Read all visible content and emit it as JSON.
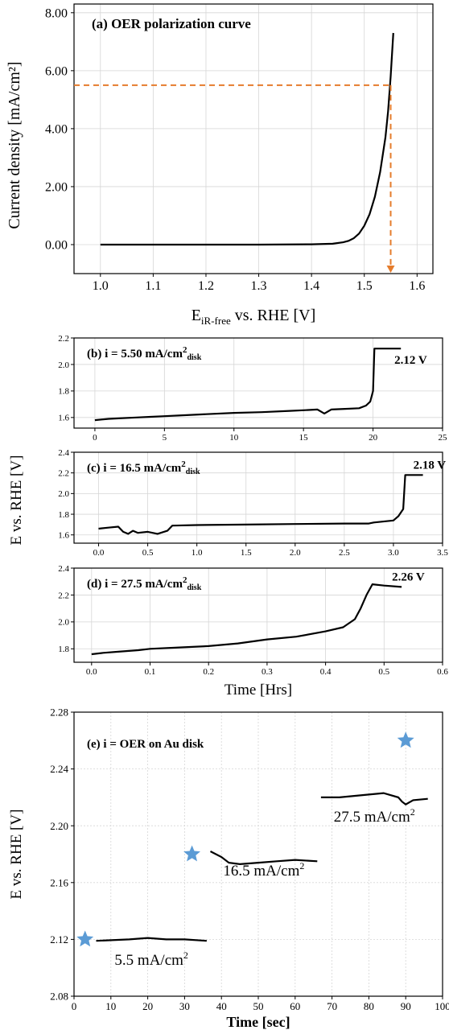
{
  "chart_data": [
    {
      "id": "a",
      "type": "line",
      "title": "(a) OER polarization curve",
      "xlabel_main": "E",
      "xlabel_sub": "iR-free",
      "xlabel_rest": " vs. RHE [V]",
      "ylabel": "Current density [mA/cm²]",
      "xlim": [
        0.95,
        1.63
      ],
      "ylim": [
        -1.0,
        8.3
      ],
      "xticks": [
        1.0,
        1.1,
        1.2,
        1.3,
        1.4,
        1.5,
        1.6
      ],
      "xtick_labels": [
        "1.0",
        "1.1",
        "1.2",
        "1.3",
        "1.4",
        "1.5",
        "1.6"
      ],
      "yticks": [
        0,
        2,
        4,
        6,
        8
      ],
      "ytick_labels": [
        "0.00",
        "2.00",
        "4.00",
        "6.00",
        "8.00"
      ],
      "grid": true,
      "series": [
        {
          "x": [
            1.0,
            1.1,
            1.2,
            1.3,
            1.4,
            1.44,
            1.46,
            1.47,
            1.48,
            1.49,
            1.5,
            1.51,
            1.52,
            1.53,
            1.54,
            1.545,
            1.55,
            1.555
          ],
          "y": [
            0.0,
            0.0,
            0.0,
            0.0,
            0.01,
            0.03,
            0.08,
            0.13,
            0.22,
            0.38,
            0.65,
            1.05,
            1.65,
            2.5,
            3.7,
            4.6,
            5.8,
            7.3
          ]
        }
      ],
      "marker_hline_y": 5.5,
      "marker_vline_x": 1.55,
      "marker_color": "#e57c2c"
    },
    {
      "id": "b",
      "type": "line",
      "title_pre": "(b) ",
      "title_i": "i",
      "title_mid": " = 5.50 mA/cm",
      "title_sup": "2",
      "title_sub": "disk",
      "annotation": "2.12 V",
      "xlim": [
        -1.5,
        25
      ],
      "ylim": [
        1.52,
        2.2
      ],
      "xticks": [
        0,
        5,
        10,
        15,
        20,
        25
      ],
      "xtick_labels": [
        "0",
        "5",
        "10",
        "15",
        "20",
        "25"
      ],
      "yticks": [
        1.6,
        1.8,
        2.0,
        2.2
      ],
      "ytick_labels": [
        "1.6",
        "1.8",
        "2.0",
        "2.2"
      ],
      "grid": true,
      "series": [
        {
          "x": [
            0,
            1,
            2,
            3,
            4,
            5,
            6,
            8,
            10,
            12,
            14,
            15,
            16,
            16.5,
            17,
            18,
            19,
            19.5,
            19.8,
            20.0,
            20.1,
            22
          ],
          "y": [
            1.58,
            1.59,
            1.595,
            1.6,
            1.605,
            1.61,
            1.615,
            1.625,
            1.635,
            1.64,
            1.65,
            1.655,
            1.66,
            1.63,
            1.66,
            1.665,
            1.67,
            1.69,
            1.72,
            1.8,
            2.12,
            2.12
          ]
        }
      ]
    },
    {
      "id": "c",
      "type": "line",
      "title_pre": "(c) ",
      "title_i": "i",
      "title_mid": " = 16.5 mA/cm",
      "title_sup": "2",
      "title_sub": "disk",
      "annotation": "2.18 V",
      "xlim": [
        -0.25,
        3.5
      ],
      "ylim": [
        1.52,
        2.4
      ],
      "xticks": [
        0.0,
        0.5,
        1.0,
        1.5,
        2.0,
        2.5,
        3.0,
        3.5
      ],
      "xtick_labels": [
        "0.0",
        "0.5",
        "1.0",
        "1.5",
        "2.0",
        "2.5",
        "3.0",
        "3.5"
      ],
      "yticks": [
        1.6,
        1.8,
        2.0,
        2.2,
        2.4
      ],
      "ytick_labels": [
        "1.6",
        "1.8",
        "2.0",
        "2.2",
        "2.4"
      ],
      "grid": true,
      "series": [
        {
          "x": [
            0.0,
            0.1,
            0.2,
            0.25,
            0.3,
            0.35,
            0.4,
            0.5,
            0.6,
            0.7,
            0.75,
            1.0,
            1.5,
            2.0,
            2.5,
            2.75,
            2.8,
            3.0,
            3.05,
            3.1,
            3.12,
            3.3
          ],
          "y": [
            1.66,
            1.67,
            1.68,
            1.63,
            1.61,
            1.64,
            1.62,
            1.63,
            1.61,
            1.64,
            1.69,
            1.695,
            1.7,
            1.705,
            1.71,
            1.71,
            1.72,
            1.74,
            1.78,
            1.85,
            2.18,
            2.18
          ]
        }
      ]
    },
    {
      "id": "d",
      "type": "line",
      "title_pre": "(d) ",
      "title_i": "i",
      "title_mid": " = 27.5 mA/cm",
      "title_sup": "2",
      "title_sub": "disk",
      "annotation": "2.26 V",
      "xlabel": "Time [Hrs]",
      "xlim": [
        -0.03,
        0.6
      ],
      "ylim": [
        1.7,
        2.4
      ],
      "xticks": [
        0.0,
        0.1,
        0.2,
        0.3,
        0.4,
        0.5,
        0.6
      ],
      "xtick_labels": [
        "0.0",
        "0.1",
        "0.2",
        "0.3",
        "0.4",
        "0.5",
        "0.6"
      ],
      "yticks": [
        1.8,
        2.0,
        2.2,
        2.4
      ],
      "ytick_labels": [
        "1.8",
        "2.0",
        "2.2",
        "2.4"
      ],
      "grid": true,
      "series": [
        {
          "x": [
            0.0,
            0.02,
            0.05,
            0.08,
            0.1,
            0.15,
            0.2,
            0.25,
            0.3,
            0.35,
            0.4,
            0.43,
            0.45,
            0.46,
            0.47,
            0.48,
            0.5,
            0.53
          ],
          "y": [
            1.76,
            1.77,
            1.78,
            1.79,
            1.8,
            1.81,
            1.82,
            1.84,
            1.87,
            1.89,
            1.93,
            1.96,
            2.02,
            2.1,
            2.2,
            2.28,
            2.27,
            2.26
          ]
        }
      ]
    },
    {
      "id": "e",
      "type": "scatter",
      "title": "(e) i = OER on Au disk",
      "xlabel": "Time [sec]",
      "ylabel": "E vs. RHE [V]",
      "xlim": [
        0,
        100
      ],
      "ylim": [
        2.08,
        2.28
      ],
      "xticks": [
        0,
        10,
        20,
        30,
        40,
        50,
        60,
        70,
        80,
        90,
        100
      ],
      "xtick_labels": [
        "0",
        "10",
        "20",
        "30",
        "40",
        "50",
        "60",
        "70",
        "80",
        "90",
        "100"
      ],
      "yticks": [
        2.08,
        2.12,
        2.16,
        2.2,
        2.24,
        2.28
      ],
      "ytick_labels": [
        "2.08",
        "2.12",
        "2.16",
        "2.20",
        "2.24",
        "2.28"
      ],
      "grid": true,
      "segments": [
        {
          "label_base": "5.5 mA/cm",
          "label_sup": "2",
          "x": [
            6,
            15,
            20,
            25,
            30,
            36
          ],
          "y": [
            2.119,
            2.12,
            2.121,
            2.12,
            2.12,
            2.119
          ]
        },
        {
          "label_base": "16.5 mA/cm",
          "label_sup": "2",
          "x": [
            37,
            40,
            42,
            45,
            50,
            55,
            60,
            66
          ],
          "y": [
            2.182,
            2.178,
            2.174,
            2.173,
            2.174,
            2.175,
            2.176,
            2.175
          ]
        },
        {
          "label_base": "27.5 mA/cm",
          "label_sup": "2",
          "x": [
            67,
            72,
            76,
            80,
            84,
            88,
            89,
            90,
            92,
            96
          ],
          "y": [
            2.22,
            2.22,
            2.221,
            2.222,
            2.223,
            2.22,
            2.217,
            2.215,
            2.218,
            2.219
          ]
        }
      ],
      "stars": {
        "x": [
          3,
          32,
          90
        ],
        "y": [
          2.12,
          2.18,
          2.26
        ],
        "color": "#5b9bd5"
      }
    }
  ],
  "shared": {
    "ylabel_bcd": "E vs. RHE [V]"
  }
}
